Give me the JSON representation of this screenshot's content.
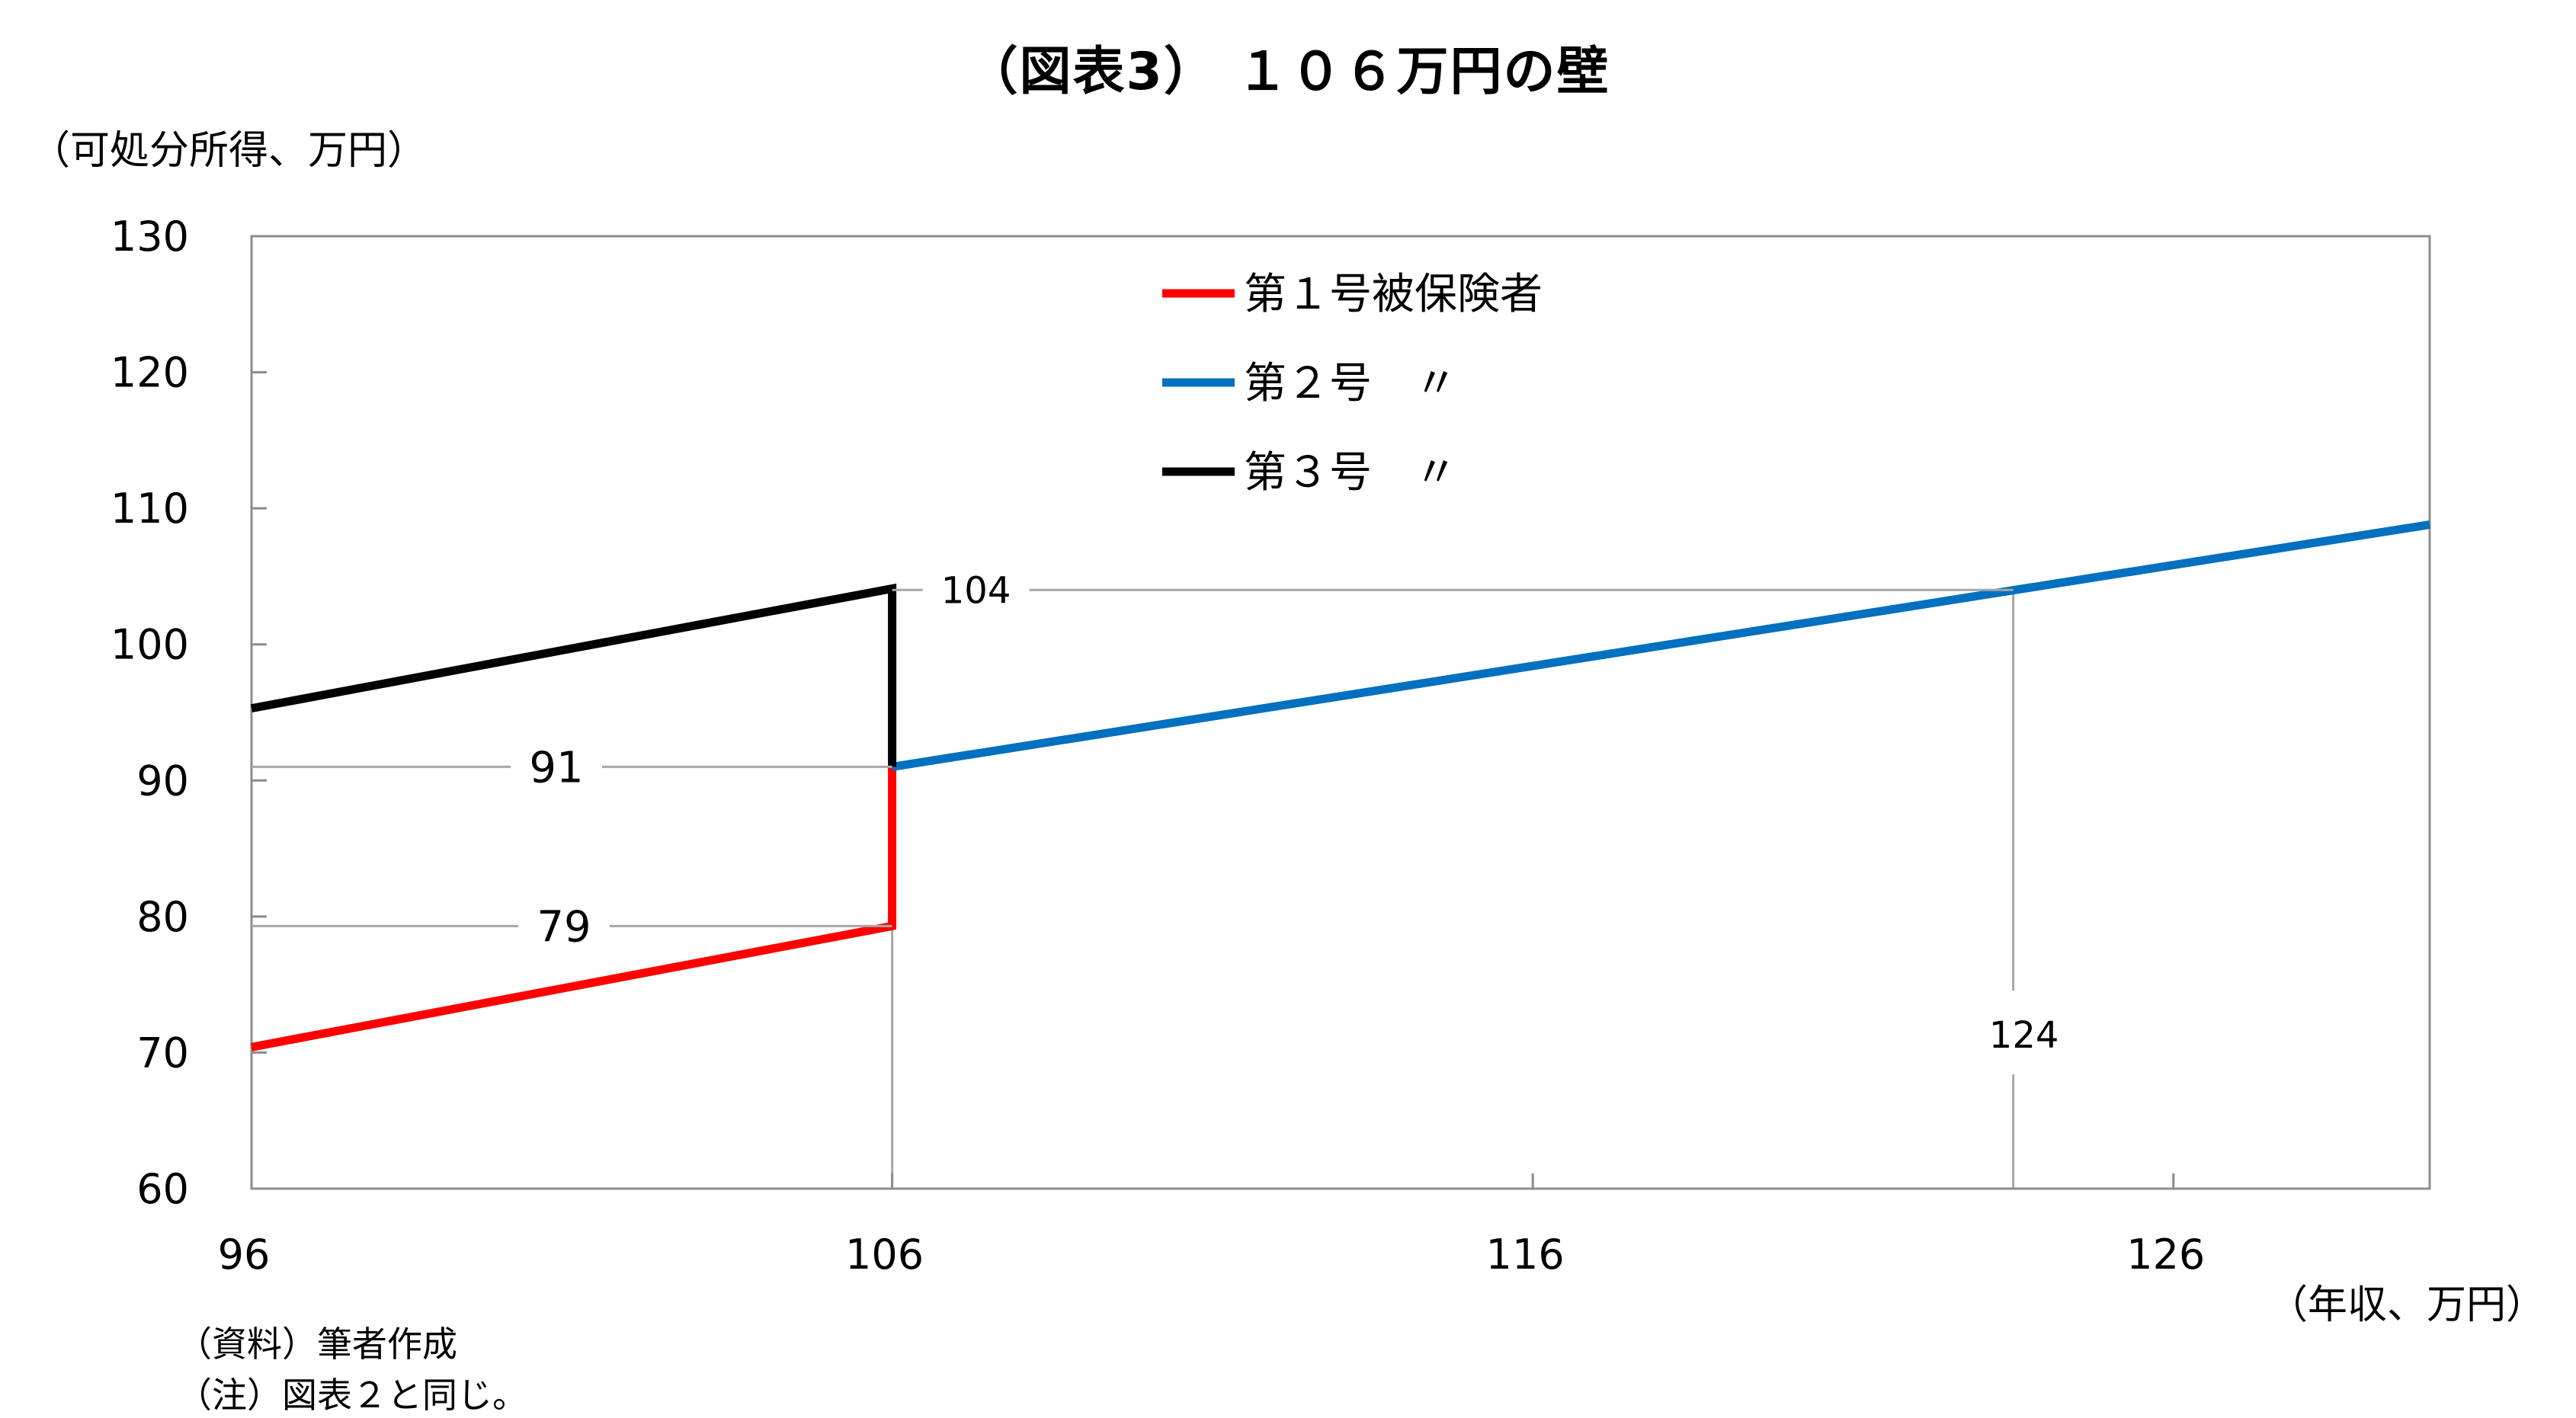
{
  "chart_data": {
    "type": "line",
    "title": "（図表3） １０６万円の壁",
    "ylabel": "（可処分所得、万円）",
    "xlabel": "（年収、万円）",
    "xlim": [
      96,
      130
    ],
    "ylim": [
      60,
      130
    ],
    "x_ticks": [
      96,
      106,
      116,
      126
    ],
    "y_ticks": [
      60,
      70,
      80,
      90,
      100,
      110,
      120,
      130
    ],
    "grid": false,
    "legend_position": "top-center",
    "series": [
      {
        "name": "第１号被保険者",
        "color": "#ff0000",
        "points": [
          [
            96,
            70.4
          ],
          [
            106,
            79.3
          ],
          [
            106,
            91
          ]
        ]
      },
      {
        "name": "第２号　〃",
        "color": "#0070c0",
        "points": [
          [
            106,
            91
          ],
          [
            130,
            108.8
          ]
        ]
      },
      {
        "name": "第３号　〃",
        "color": "#000000",
        "points": [
          [
            96,
            95.3
          ],
          [
            106,
            104.1
          ],
          [
            106,
            91
          ]
        ]
      }
    ],
    "annotations": [
      {
        "text": "104",
        "y": 104,
        "x_from": 106,
        "x_to": 123.5
      },
      {
        "text": "91",
        "y": 91,
        "x_from": 96,
        "x_to": 106
      },
      {
        "text": "79",
        "y": 79.3,
        "x_from": 96,
        "x_to": 106
      },
      {
        "text": "124",
        "x": 123.5
      }
    ],
    "reference_verticals": [
      106,
      123.5
    ]
  },
  "notes": [
    "（資料）筆者作成",
    "（注）図表２と同じ。"
  ]
}
